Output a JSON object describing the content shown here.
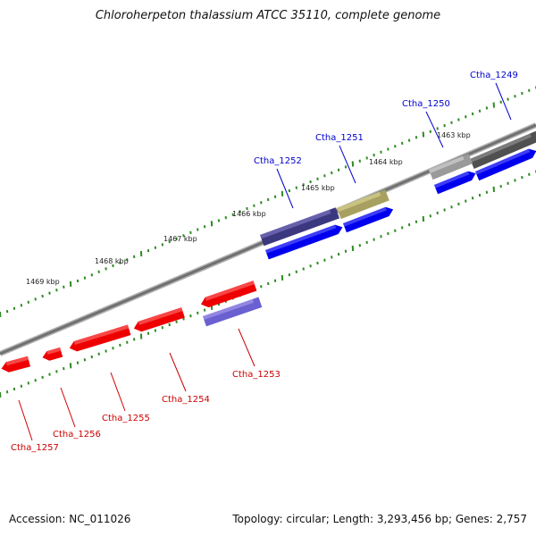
{
  "title": "Chloroherpeton thalassium ATCC 35110, complete genome",
  "footer": {
    "accession": "Accession: NC_011026",
    "summary": "Topology: circular; Length: 3,293,456 bp; Genes: 2,757"
  },
  "colors": {
    "forward_gene_label": "#0000cc",
    "reverse_gene_label": "#cc0000",
    "backbone": "#808080",
    "tick": "#2e8b22",
    "cds_forward": "#0000ee",
    "cds_reverse": "#ee0000"
  },
  "ruler_labels": [
    "1463 kbp",
    "1464 kbp",
    "1465 kbp",
    "1466 kbp",
    "1467 kbp",
    "1468 kbp",
    "1469 kbp"
  ],
  "genes_forward": [
    "Ctha_1249",
    "Ctha_1250",
    "Ctha_1251",
    "Ctha_1252"
  ],
  "genes_reverse": [
    "Ctha_1253",
    "Ctha_1254",
    "Ctha_1255",
    "Ctha_1256",
    "Ctha_1257"
  ]
}
